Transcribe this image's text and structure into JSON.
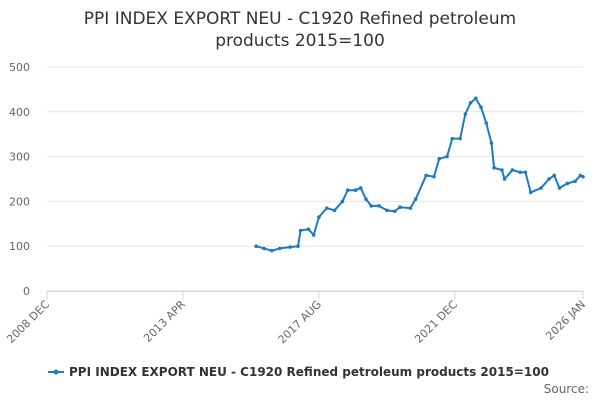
{
  "chart_data": {
    "type": "line",
    "title": "PPI INDEX EXPORT NEU - C1920 Refined petroleum products 2015=100",
    "x": [
      "2015-08",
      "2015-11",
      "2016-02",
      "2016-05",
      "2016-09",
      "2016-12",
      "2017-01",
      "2017-04",
      "2017-06",
      "2017-08",
      "2017-11",
      "2018-02",
      "2018-05",
      "2018-07",
      "2018-10",
      "2018-12",
      "2019-02",
      "2019-04",
      "2019-07",
      "2019-10",
      "2020-01",
      "2020-03",
      "2020-07",
      "2020-09",
      "2021-01",
      "2021-04",
      "2021-06",
      "2021-09",
      "2021-11",
      "2022-02",
      "2022-04",
      "2022-06",
      "2022-08",
      "2022-10",
      "2022-12",
      "2023-02",
      "2023-03",
      "2023-06",
      "2023-07",
      "2023-10",
      "2024-01",
      "2024-03",
      "2024-05",
      "2024-09",
      "2024-12",
      "2025-02",
      "2025-04",
      "2025-07",
      "2025-10",
      "2025-12",
      "2026-01"
    ],
    "series": [
      {
        "name": "PPI INDEX EXPORT NEU - C1920 Refined petroleum products 2015=100",
        "color": "#1f7bbf",
        "values": [
          100,
          95,
          90,
          95,
          98,
          100,
          135,
          138,
          125,
          165,
          185,
          180,
          200,
          225,
          225,
          230,
          205,
          190,
          190,
          180,
          178,
          187,
          185,
          205,
          258,
          255,
          295,
          300,
          340,
          340,
          395,
          420,
          430,
          410,
          375,
          330,
          275,
          270,
          250,
          270,
          265,
          265,
          220,
          230,
          250,
          258,
          230,
          240,
          245,
          258,
          255
        ]
      }
    ],
    "xlim": [
      "2008-12",
      "2026-01"
    ],
    "xticks": [
      {
        "value": "2008-12",
        "label": "2008 DEC"
      },
      {
        "value": "2013-04",
        "label": "2013 APR"
      },
      {
        "value": "2017-08",
        "label": "2017 AUG"
      },
      {
        "value": "2021-12",
        "label": "2021 DEC"
      },
      {
        "value": "2026-01",
        "label": "2026 JAN"
      }
    ],
    "ylim": [
      0,
      500
    ],
    "yticks": [
      0,
      100,
      200,
      300,
      400,
      500
    ],
    "grid": true,
    "source": "Source:"
  }
}
